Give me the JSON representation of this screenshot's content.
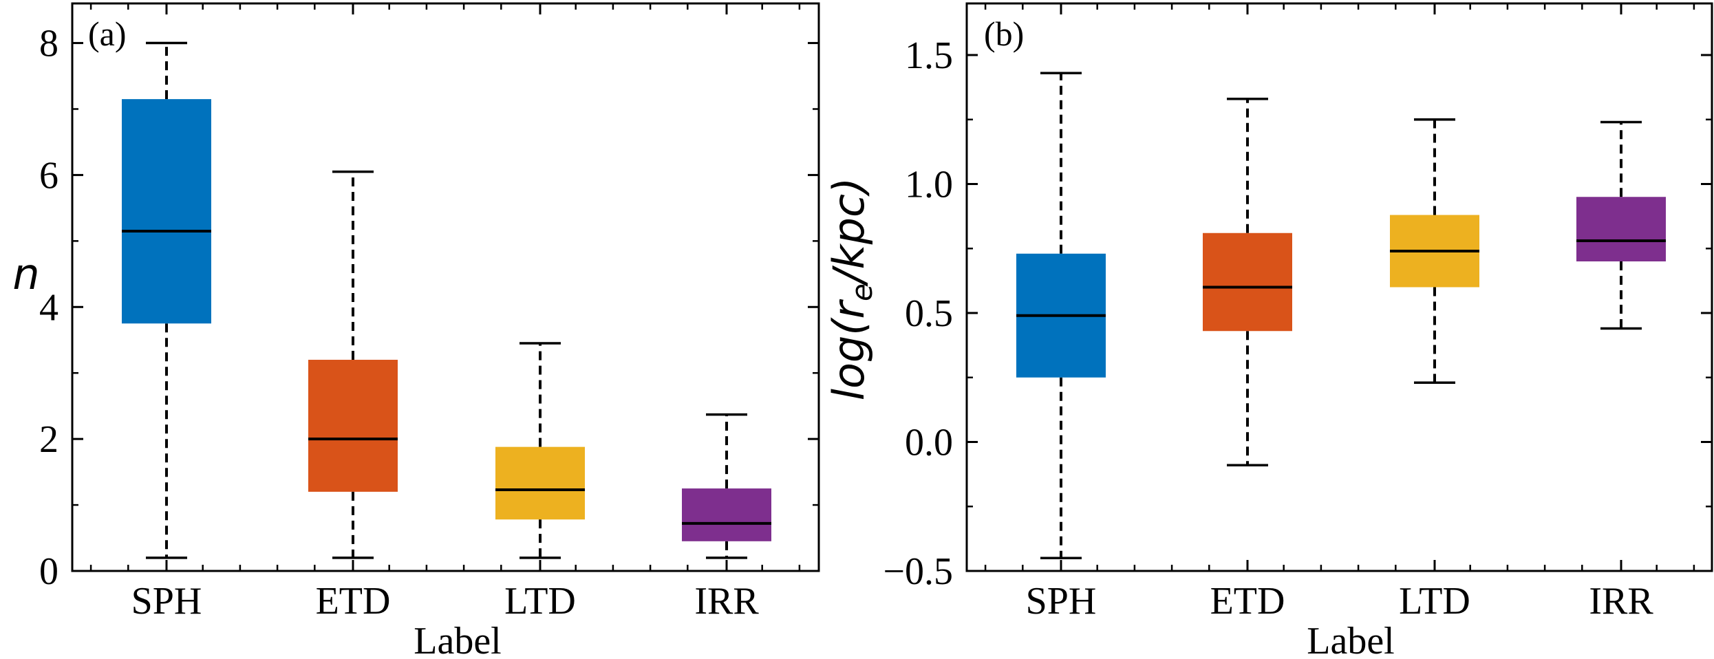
{
  "chart_data": [
    {
      "type": "box",
      "panel_label": "(a)",
      "xlabel": "Label",
      "ylabel": "n",
      "categories": [
        "SPH",
        "ETD",
        "LTD",
        "IRR"
      ],
      "colors": [
        "#0072BD",
        "#D95319",
        "#EDB120",
        "#7E2F8E"
      ],
      "ylim": [
        0,
        8.6
      ],
      "yticks": [
        0,
        2,
        4,
        6,
        8
      ],
      "ytick_labels": [
        "0",
        "2",
        "4",
        "6",
        "8"
      ],
      "boxes": [
        {
          "label": "SPH",
          "whislo": 0.2,
          "q1": 3.75,
          "med": 5.15,
          "q3": 7.15,
          "whishi": 8.0
        },
        {
          "label": "ETD",
          "whislo": 0.2,
          "q1": 1.2,
          "med": 2.0,
          "q3": 3.2,
          "whishi": 6.05
        },
        {
          "label": "LTD",
          "whislo": 0.2,
          "q1": 0.78,
          "med": 1.23,
          "q3": 1.88,
          "whishi": 3.45
        },
        {
          "label": "IRR",
          "whislo": 0.2,
          "q1": 0.45,
          "med": 0.72,
          "q3": 1.25,
          "whishi": 2.37
        }
      ]
    },
    {
      "type": "box",
      "panel_label": "(b)",
      "xlabel": "Label",
      "ylabel_parts": {
        "pre": "log(",
        "main": "r",
        "sub": "e",
        "post": "/kpc)"
      },
      "categories": [
        "SPH",
        "ETD",
        "LTD",
        "IRR"
      ],
      "colors": [
        "#0072BD",
        "#D95319",
        "#EDB120",
        "#7E2F8E"
      ],
      "ylim": [
        -0.5,
        1.7
      ],
      "yticks": [
        -0.5,
        0.0,
        0.5,
        1.0,
        1.5
      ],
      "ytick_labels": [
        "−0.5",
        "0.0",
        "0.5",
        "1.0",
        "1.5"
      ],
      "boxes": [
        {
          "label": "SPH",
          "whislo": -0.45,
          "q1": 0.25,
          "med": 0.49,
          "q3": 0.73,
          "whishi": 1.43
        },
        {
          "label": "ETD",
          "whislo": -0.09,
          "q1": 0.43,
          "med": 0.6,
          "q3": 0.81,
          "whishi": 1.33
        },
        {
          "label": "LTD",
          "whislo": 0.23,
          "q1": 0.6,
          "med": 0.74,
          "q3": 0.88,
          "whishi": 1.25
        },
        {
          "label": "IRR",
          "whislo": 0.44,
          "q1": 0.7,
          "med": 0.78,
          "q3": 0.95,
          "whishi": 1.24
        }
      ]
    }
  ]
}
